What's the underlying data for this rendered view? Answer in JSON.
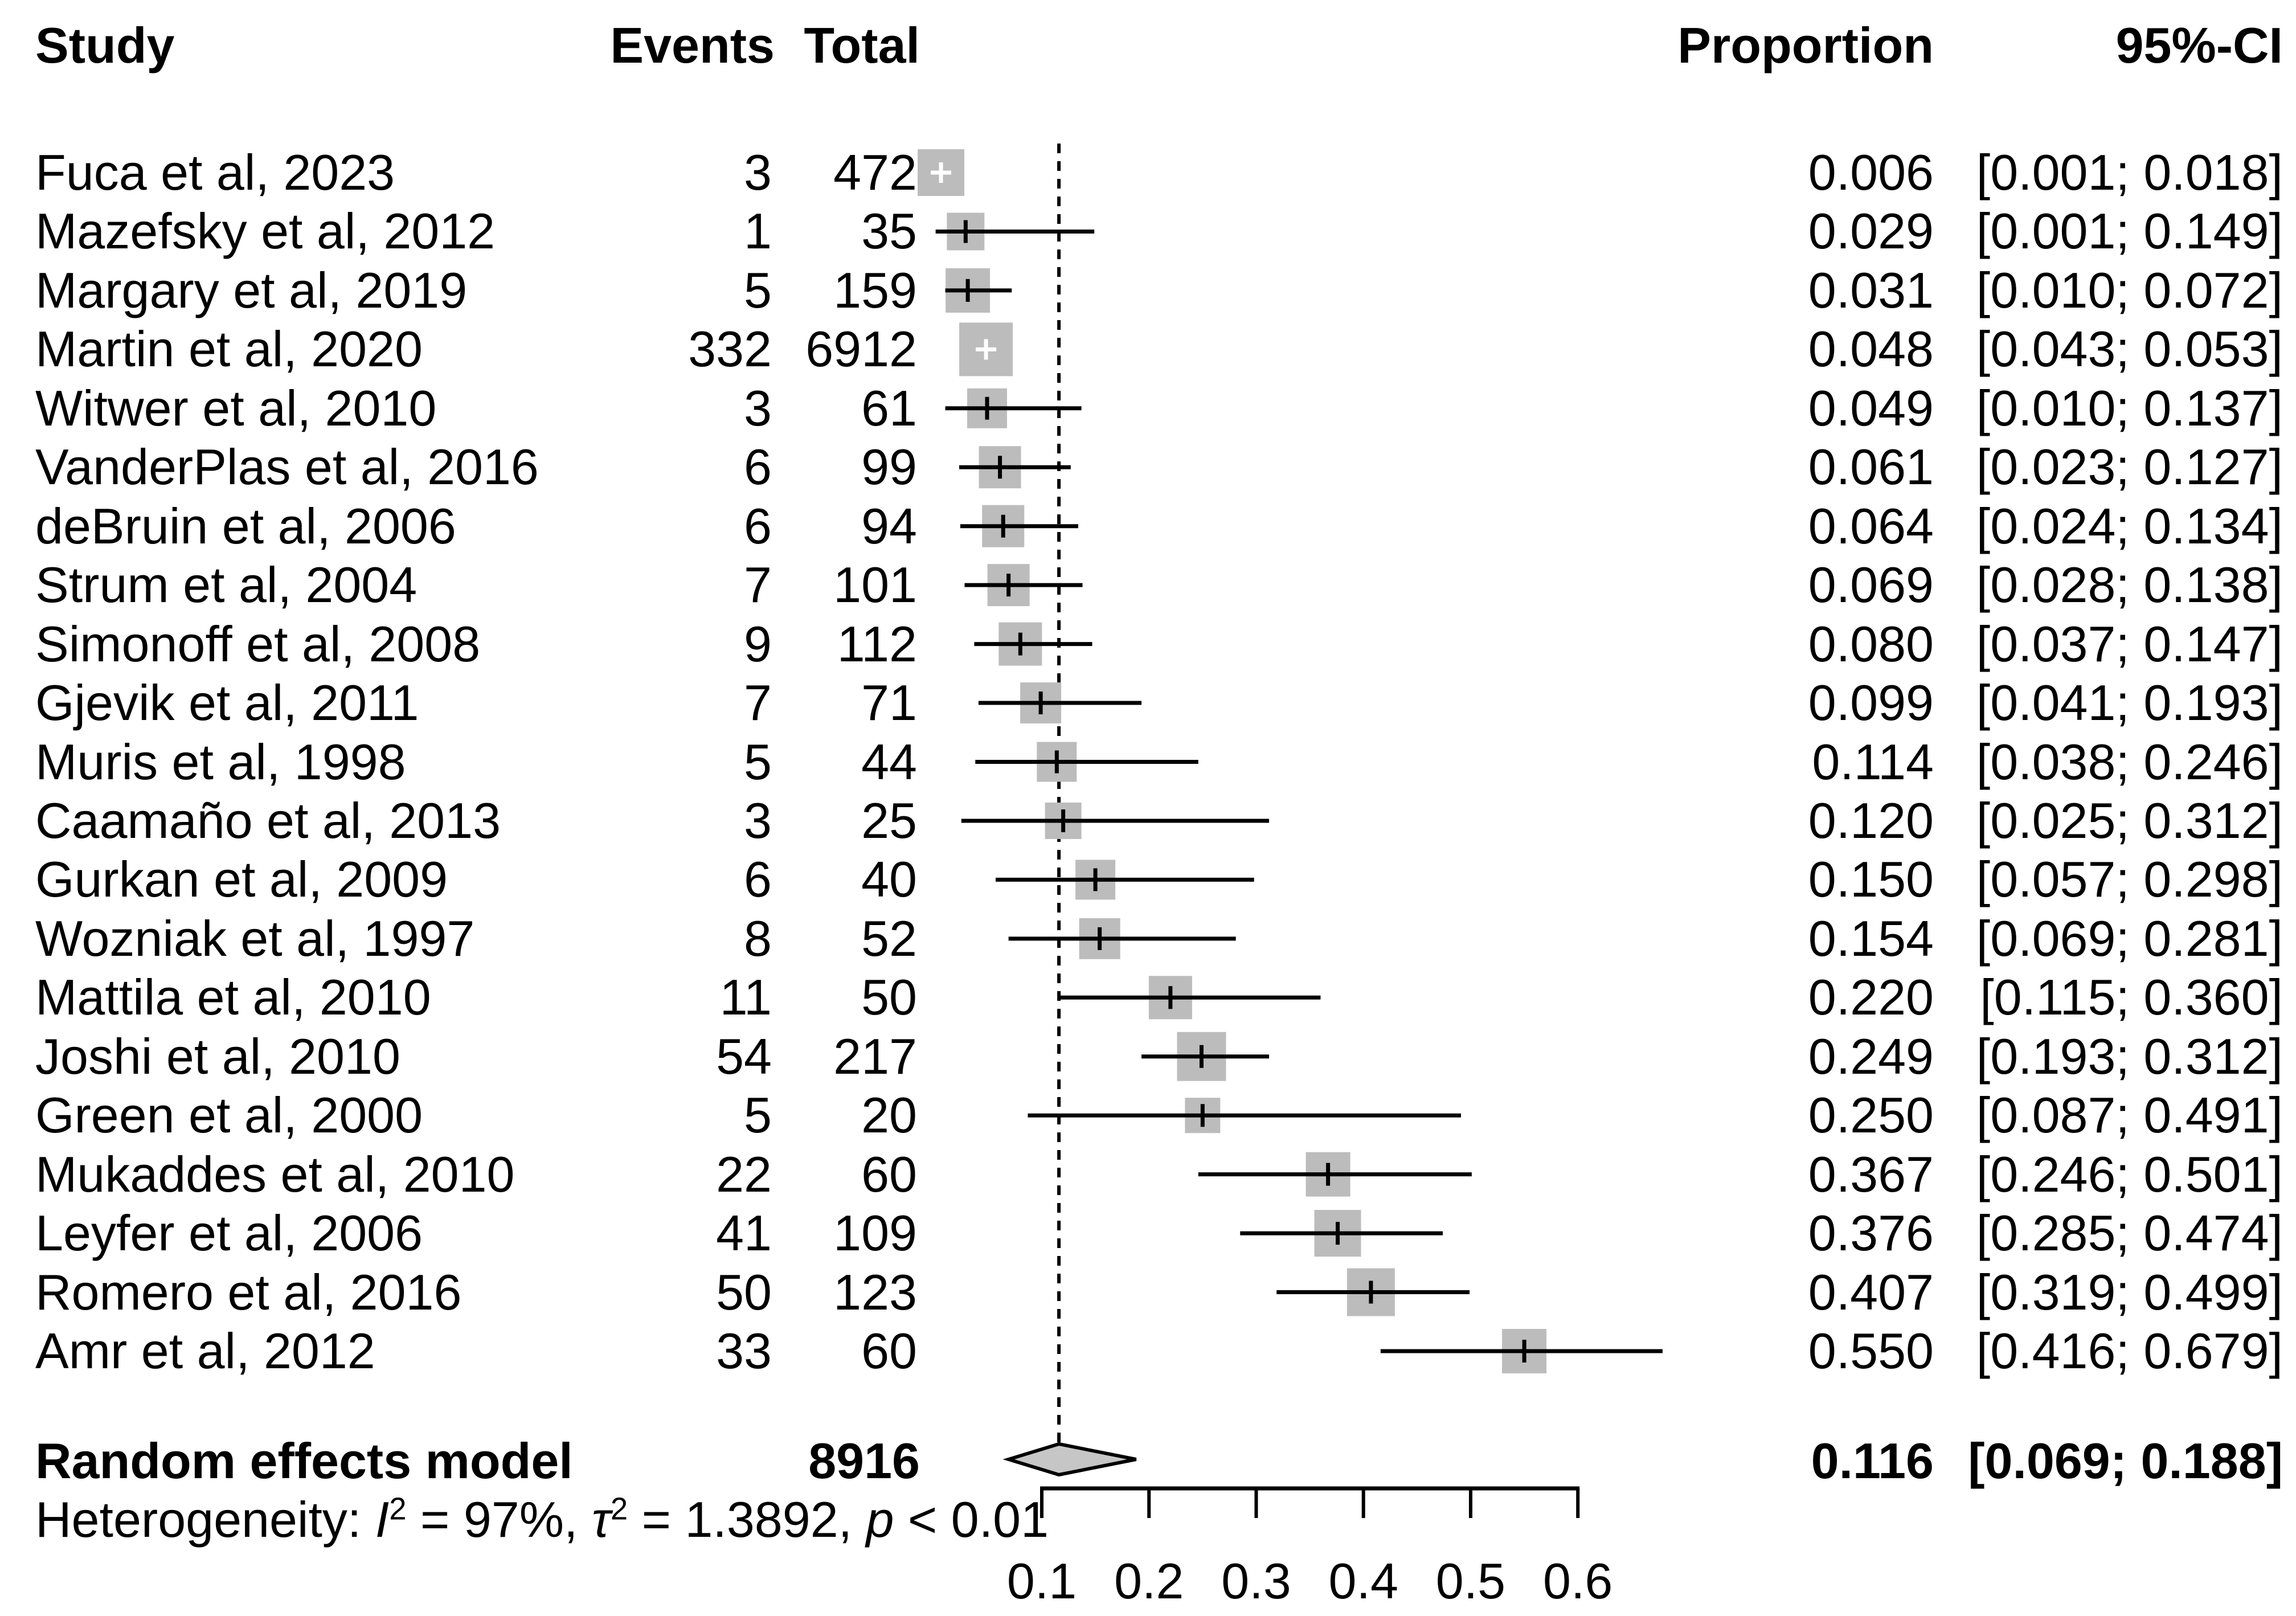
{
  "chart_data": {
    "type": "forest",
    "columns": {
      "study": "Study",
      "events": "Events",
      "total": "Total",
      "proportion": "Proportion",
      "ci": "95%-CI"
    },
    "studies": [
      {
        "study": "Fuca et al, 2023",
        "events": "3",
        "total": "472",
        "proportion": "0.006",
        "ci": "[0.001; 0.018]",
        "prop": 0.006,
        "lower": 0.001,
        "upper": 0.018,
        "square_size": 82,
        "marker": "white-cross"
      },
      {
        "study": "Mazefsky et al, 2012",
        "events": "1",
        "total": "35",
        "proportion": "0.029",
        "ci": "[0.001; 0.149]",
        "prop": 0.029,
        "lower": 0.001,
        "upper": 0.149,
        "square_size": 66,
        "marker": "black-tick"
      },
      {
        "study": "Margary et al, 2019",
        "events": "5",
        "total": "159",
        "proportion": "0.031",
        "ci": "[0.010; 0.072]",
        "prop": 0.031,
        "lower": 0.01,
        "upper": 0.072,
        "square_size": 78,
        "marker": "black-tick"
      },
      {
        "study": "Martin et al, 2020",
        "events": "332",
        "total": "6912",
        "proportion": "0.048",
        "ci": "[0.043; 0.053]",
        "prop": 0.048,
        "lower": 0.043,
        "upper": 0.053,
        "square_size": 94,
        "marker": "white-cross"
      },
      {
        "study": "Witwer et al, 2010",
        "events": "3",
        "total": "61",
        "proportion": "0.049",
        "ci": "[0.010; 0.137]",
        "prop": 0.049,
        "lower": 0.01,
        "upper": 0.137,
        "square_size": 70,
        "marker": "black-tick"
      },
      {
        "study": "VanderPlas et al, 2016",
        "events": "6",
        "total": "99",
        "proportion": "0.061",
        "ci": "[0.023; 0.127]",
        "prop": 0.061,
        "lower": 0.023,
        "upper": 0.127,
        "square_size": 74,
        "marker": "black-tick"
      },
      {
        "study": "deBruin et al, 2006",
        "events": "6",
        "total": "94",
        "proportion": "0.064",
        "ci": "[0.024; 0.134]",
        "prop": 0.064,
        "lower": 0.024,
        "upper": 0.134,
        "square_size": 74,
        "marker": "black-tick"
      },
      {
        "study": "Strum et al, 2004",
        "events": "7",
        "total": "101",
        "proportion": "0.069",
        "ci": "[0.028; 0.138]",
        "prop": 0.069,
        "lower": 0.028,
        "upper": 0.138,
        "square_size": 74,
        "marker": "black-tick"
      },
      {
        "study": "Simonoff et al, 2008",
        "events": "9",
        "total": "112",
        "proportion": "0.080",
        "ci": "[0.037; 0.147]",
        "prop": 0.08,
        "lower": 0.037,
        "upper": 0.147,
        "square_size": 76,
        "marker": "black-tick"
      },
      {
        "study": "Gjevik et al, 2011",
        "events": "7",
        "total": "71",
        "proportion": "0.099",
        "ci": "[0.041; 0.193]",
        "prop": 0.099,
        "lower": 0.041,
        "upper": 0.193,
        "square_size": 72,
        "marker": "black-tick"
      },
      {
        "study": "Muris et al, 1998",
        "events": "5",
        "total": "44",
        "proportion": "0.114",
        "ci": "[0.038; 0.246]",
        "prop": 0.114,
        "lower": 0.038,
        "upper": 0.246,
        "square_size": 70,
        "marker": "black-tick"
      },
      {
        "study": "Caamaño et al, 2013",
        "events": "3",
        "total": "25",
        "proportion": "0.120",
        "ci": "[0.025; 0.312]",
        "prop": 0.12,
        "lower": 0.025,
        "upper": 0.312,
        "square_size": 64,
        "marker": "black-tick"
      },
      {
        "study": "Gurkan et al, 2009",
        "events": "6",
        "total": "40",
        "proportion": "0.150",
        "ci": "[0.057; 0.298]",
        "prop": 0.15,
        "lower": 0.057,
        "upper": 0.298,
        "square_size": 70,
        "marker": "black-tick"
      },
      {
        "study": "Wozniak et al, 1997",
        "events": "8",
        "total": "52",
        "proportion": "0.154",
        "ci": "[0.069; 0.281]",
        "prop": 0.154,
        "lower": 0.069,
        "upper": 0.281,
        "square_size": 72,
        "marker": "black-tick"
      },
      {
        "study": "Mattila et al, 2010",
        "events": "11",
        "total": "50",
        "proportion": "0.220",
        "ci": "[0.115; 0.360]",
        "prop": 0.22,
        "lower": 0.115,
        "upper": 0.36,
        "square_size": 76,
        "marker": "black-tick"
      },
      {
        "study": "Joshi et al, 2010",
        "events": "54",
        "total": "217",
        "proportion": "0.249",
        "ci": "[0.193; 0.312]",
        "prop": 0.249,
        "lower": 0.193,
        "upper": 0.312,
        "square_size": 86,
        "marker": "black-tick"
      },
      {
        "study": "Green et al, 2000",
        "events": "5",
        "total": "20",
        "proportion": "0.250",
        "ci": "[0.087; 0.491]",
        "prop": 0.25,
        "lower": 0.087,
        "upper": 0.491,
        "square_size": 62,
        "marker": "black-tick"
      },
      {
        "study": "Mukaddes et al, 2010",
        "events": "22",
        "total": "60",
        "proportion": "0.367",
        "ci": "[0.246; 0.501]",
        "prop": 0.367,
        "lower": 0.246,
        "upper": 0.501,
        "square_size": 78,
        "marker": "black-tick"
      },
      {
        "study": "Leyfer et al, 2006",
        "events": "41",
        "total": "109",
        "proportion": "0.376",
        "ci": "[0.285; 0.474]",
        "prop": 0.376,
        "lower": 0.285,
        "upper": 0.474,
        "square_size": 82,
        "marker": "black-tick"
      },
      {
        "study": "Romero et al, 2016",
        "events": "50",
        "total": "123",
        "proportion": "0.407",
        "ci": "[0.319; 0.499]",
        "prop": 0.407,
        "lower": 0.319,
        "upper": 0.499,
        "square_size": 84,
        "marker": "black-tick"
      },
      {
        "study": "Amr et al, 2012",
        "events": "33",
        "total": "60",
        "proportion": "0.550",
        "ci": "[0.416; 0.679]",
        "prop": 0.55,
        "lower": 0.416,
        "upper": 0.679,
        "square_size": 78,
        "marker": "black-tick"
      }
    ],
    "summary": {
      "label": "Random effects model",
      "total": "8916",
      "proportion": "0.116",
      "ci": "[0.069; 0.188]",
      "prop": 0.116,
      "lower": 0.069,
      "upper": 0.188
    },
    "heterogeneity": {
      "prefix": "Heterogeneity: ",
      "i_symbol": "I",
      "i_sup": "2",
      "mid1": " = 97%, ",
      "tau_symbol": "τ",
      "tau_sup": "2",
      "mid2": " = 1.3892, ",
      "p_symbol": "p",
      "tail": " < 0.01"
    },
    "axis": {
      "ticks": [
        0.1,
        0.2,
        0.3,
        0.4,
        0.5,
        0.6
      ],
      "tick_labels": [
        "0.1",
        "0.2",
        "0.3",
        "0.4",
        "0.5",
        "0.6"
      ],
      "reference_line": 0.116
    },
    "colors": {
      "square_fill": "#bcbcbc",
      "diamond_fill": "#c6c6c6",
      "line": "#000000"
    }
  }
}
